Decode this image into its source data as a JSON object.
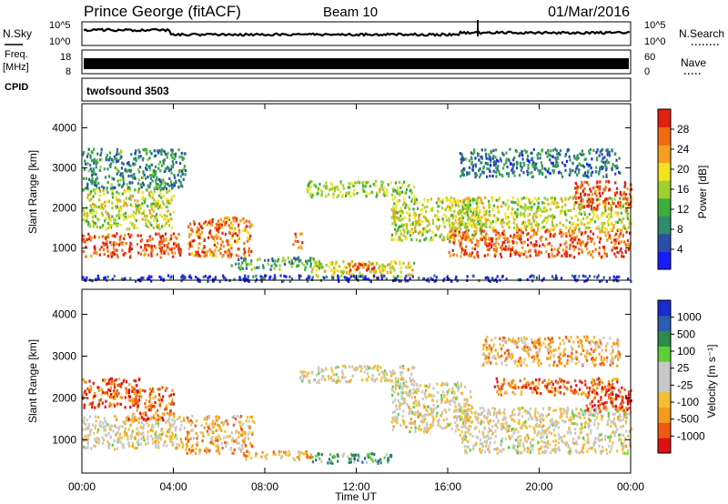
{
  "header": {
    "station": "Prince George (fitACF)",
    "beam": "Beam 10",
    "date": "01/Mar/2016"
  },
  "aux_panels": {
    "nsky_label": "N.Sky",
    "nsearch_label": "N.Search",
    "log_ticks": [
      "10^5",
      "10^0"
    ],
    "freq_label_1": "Freq.",
    "freq_label_2": "[MHz]",
    "freq_ticks": [
      "18",
      "8"
    ],
    "nave_label": "Nave",
    "nave_ticks": [
      "60",
      "0"
    ],
    "cpid_label": "CPID",
    "cpid_value": "twofsound 3503"
  },
  "colors": {
    "power": [
      "#1a1aff",
      "#2b4fa8",
      "#2f8c6e",
      "#3cae3c",
      "#9fd02f",
      "#f2e41f",
      "#f4a01e",
      "#f06a10",
      "#e02010"
    ],
    "velocity": [
      "#e01010",
      "#f05a10",
      "#f59a1a",
      "#f5c030",
      "#c8c8c8",
      "#c8c8c8",
      "#5ad03a",
      "#2e8a4a",
      "#2a5fb0",
      "#1a2ad0"
    ]
  },
  "chart_data": [
    {
      "type": "heatmap",
      "name": "power",
      "ylabel": "Slant Range [km]",
      "ylim": [
        200,
        4600
      ],
      "y_ticks": [
        1000,
        2000,
        3000,
        4000
      ],
      "x_range_hours": [
        0,
        24
      ],
      "x_ticks": [
        "00:00",
        "04:00",
        "08:00",
        "12:00",
        "16:00",
        "20:00",
        "00:00"
      ],
      "colorbar_label": "Power [dB]",
      "colorbar_ticks": [
        "28",
        "24",
        "20",
        "16",
        "12",
        "8",
        "4"
      ],
      "regions": [
        {
          "t0": 0.0,
          "t1": 4.3,
          "r0": 800,
          "r1": 1400,
          "level": 0.88
        },
        {
          "t0": 0.0,
          "t1": 4.0,
          "r0": 1500,
          "r1": 2500,
          "level": 0.55
        },
        {
          "t0": 0.0,
          "t1": 4.5,
          "r0": 2500,
          "r1": 3500,
          "level": 0.3
        },
        {
          "t0": 4.6,
          "t1": 7.4,
          "r0": 800,
          "r1": 1800,
          "level": 0.8
        },
        {
          "t0": 6.5,
          "t1": 10.5,
          "r0": 500,
          "r1": 800,
          "level": 0.35
        },
        {
          "t0": 10.0,
          "t1": 14.5,
          "r0": 300,
          "r1": 700,
          "level": 0.6
        },
        {
          "t0": 11.5,
          "t1": 12.8,
          "r0": 450,
          "r1": 650,
          "level": 0.95
        },
        {
          "t0": 9.2,
          "t1": 9.6,
          "r0": 1000,
          "r1": 1400,
          "level": 0.85
        },
        {
          "t0": 9.8,
          "t1": 14.5,
          "r0": 2300,
          "r1": 2700,
          "level": 0.5
        },
        {
          "t0": 13.5,
          "t1": 17.5,
          "r0": 1200,
          "r1": 2300,
          "level": 0.55
        },
        {
          "t0": 16.0,
          "t1": 24.0,
          "r0": 800,
          "r1": 1500,
          "level": 0.85
        },
        {
          "t0": 16.0,
          "t1": 24.0,
          "r0": 1500,
          "r1": 2300,
          "level": 0.55
        },
        {
          "t0": 21.5,
          "t1": 24.0,
          "r0": 2000,
          "r1": 2700,
          "level": 0.9
        },
        {
          "t0": 16.5,
          "t1": 23.5,
          "r0": 2800,
          "r1": 3500,
          "level": 0.25
        },
        {
          "t0": 0.0,
          "t1": 24.0,
          "r0": 200,
          "r1": 350,
          "level": 0.1
        }
      ]
    },
    {
      "type": "heatmap",
      "name": "velocity",
      "ylabel": "Slant Range [km]",
      "xlabel": "Time UT",
      "ylim": [
        200,
        4600
      ],
      "y_ticks": [
        1000,
        2000,
        3000,
        4000
      ],
      "x_range_hours": [
        0,
        24
      ],
      "x_ticks": [
        "00:00",
        "04:00",
        "08:00",
        "12:00",
        "16:00",
        "20:00",
        "00:00"
      ],
      "colorbar_label": "Velocity [m s⁻¹]",
      "colorbar_ticks": [
        "1000",
        "500",
        "100",
        "25",
        "-25",
        "-100",
        "-500",
        "-1000"
      ],
      "regions": [
        {
          "t0": 0.0,
          "t1": 4.5,
          "r0": 800,
          "r1": 1600,
          "level": 0.45
        },
        {
          "t0": 0.0,
          "t1": 2.5,
          "r0": 1800,
          "r1": 2500,
          "level": 0.15
        },
        {
          "t0": 2.0,
          "t1": 4.0,
          "r0": 1500,
          "r1": 2300,
          "level": 0.2
        },
        {
          "t0": 4.5,
          "t1": 7.5,
          "r0": 700,
          "r1": 1600,
          "level": 0.3
        },
        {
          "t0": 7.0,
          "t1": 10.0,
          "r0": 550,
          "r1": 750,
          "level": 0.3
        },
        {
          "t0": 10.0,
          "t1": 13.5,
          "r0": 450,
          "r1": 700,
          "level": 0.7
        },
        {
          "t0": 9.5,
          "t1": 14.5,
          "r0": 2400,
          "r1": 2800,
          "level": 0.45
        },
        {
          "t0": 13.5,
          "t1": 17.0,
          "r0": 1200,
          "r1": 2400,
          "level": 0.45
        },
        {
          "t0": 16.5,
          "t1": 24.0,
          "r0": 700,
          "r1": 1800,
          "level": 0.45
        },
        {
          "t0": 18.0,
          "t1": 23.5,
          "r0": 2100,
          "r1": 2500,
          "level": 0.2
        },
        {
          "t0": 22.0,
          "t1": 24.0,
          "r0": 1700,
          "r1": 2300,
          "level": 0.12
        },
        {
          "t0": 17.5,
          "t1": 23.5,
          "r0": 2800,
          "r1": 3500,
          "level": 0.3
        }
      ]
    }
  ]
}
